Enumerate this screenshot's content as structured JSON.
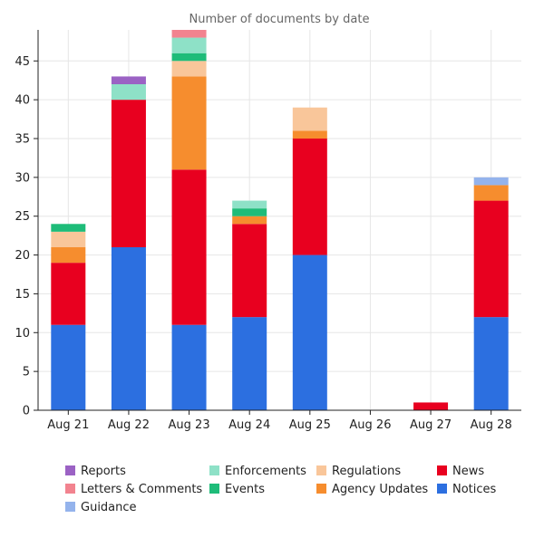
{
  "chart_data": {
    "type": "bar",
    "stacked": true,
    "title": "Number of documents by date",
    "xlabel": "",
    "ylabel": "",
    "categories": [
      "Aug 21",
      "Aug 22",
      "Aug 23",
      "Aug 24",
      "Aug 25",
      "Aug 26",
      "Aug 27",
      "Aug 28"
    ],
    "ylim": [
      0,
      49
    ],
    "yticks": [
      0,
      5,
      10,
      15,
      20,
      25,
      30,
      35,
      40,
      45
    ],
    "grid": true,
    "legend_position": "bottom",
    "series": [
      {
        "name": "Notices",
        "color": "#2c6fe0",
        "values": [
          11,
          21,
          11,
          12,
          20,
          0,
          0,
          12
        ]
      },
      {
        "name": "News",
        "color": "#e8001f",
        "values": [
          8,
          19,
          20,
          12,
          15,
          0,
          1,
          15
        ]
      },
      {
        "name": "Agency Updates",
        "color": "#f68d2e",
        "values": [
          2,
          0,
          12,
          1,
          1,
          0,
          0,
          2
        ]
      },
      {
        "name": "Regulations",
        "color": "#f9c69a",
        "values": [
          2,
          0,
          2,
          0,
          3,
          0,
          0,
          0
        ]
      },
      {
        "name": "Events",
        "color": "#1ebc79",
        "values": [
          1,
          0,
          1,
          1,
          0,
          0,
          0,
          0
        ]
      },
      {
        "name": "Enforcements",
        "color": "#8ee1c7",
        "values": [
          0,
          2,
          2,
          1,
          0,
          0,
          0,
          0
        ]
      },
      {
        "name": "Letters & Comments",
        "color": "#f2838f",
        "values": [
          0,
          0,
          1,
          0,
          0,
          0,
          0,
          0
        ]
      },
      {
        "name": "Reports",
        "color": "#9b62c4",
        "values": [
          0,
          1,
          0,
          0,
          0,
          0,
          0,
          0
        ]
      },
      {
        "name": "Guidance",
        "color": "#94b3ec",
        "values": [
          0,
          0,
          0,
          0,
          0,
          0,
          0,
          1
        ]
      }
    ],
    "legend_order": [
      "Reports",
      "Enforcements",
      "Regulations",
      "News",
      "Letters & Comments",
      "Events",
      "Agency Updates",
      "Notices",
      "Guidance"
    ]
  }
}
